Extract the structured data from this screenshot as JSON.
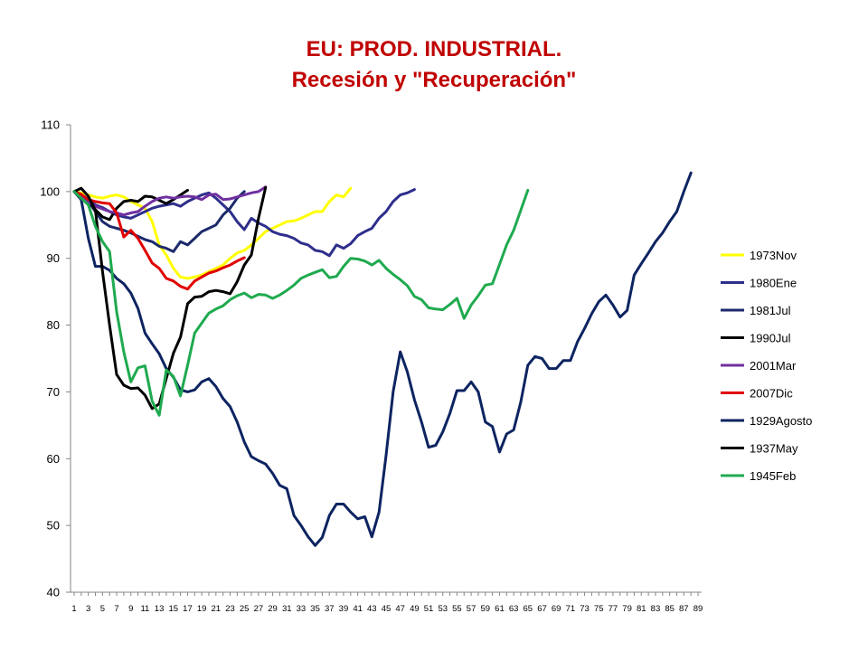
{
  "chart_data": {
    "type": "line",
    "title": "EU: PROD. INDUSTRIAL.",
    "subtitle": "Recesión y \"Recuperación\"",
    "xlabel": "",
    "ylabel": "",
    "ylim": [
      40,
      110
    ],
    "yticks": [
      40,
      50,
      60,
      70,
      80,
      90,
      100,
      110
    ],
    "xlim": [
      1,
      89
    ],
    "xticks": [
      1,
      3,
      5,
      7,
      9,
      11,
      13,
      15,
      17,
      19,
      21,
      23,
      25,
      27,
      29,
      31,
      33,
      35,
      37,
      39,
      41,
      43,
      45,
      47,
      49,
      51,
      53,
      55,
      57,
      59,
      61,
      63,
      65,
      67,
      69,
      71,
      73,
      75,
      77,
      79,
      81,
      83,
      85,
      87,
      89
    ],
    "grid": false,
    "legend_position": "right",
    "series": [
      {
        "name": "1973Nov",
        "color": "#ffff00",
        "values": [
          100,
          99.8,
          99.5,
          99.2,
          99,
          99.3,
          99.5,
          99.2,
          98.5,
          98,
          97.5,
          95.5,
          92,
          90.5,
          88.5,
          87.2,
          87,
          87.2,
          87.5,
          88,
          88.5,
          89,
          90,
          90.8,
          91.2,
          92,
          93,
          94,
          94.5,
          95,
          95.5,
          95.6,
          96,
          96.5,
          97,
          97,
          98.5,
          99.5,
          99.2,
          100.5
        ]
      },
      {
        "name": "1980Ene",
        "color": "#2e2e8c",
        "values": [
          100,
          99.5,
          98.8,
          98,
          97.6,
          97,
          96.5,
          96.2,
          96,
          96.5,
          97,
          97.5,
          97.8,
          98,
          98.2,
          97.8,
          98.5,
          99,
          99.5,
          99.8,
          99,
          98,
          97,
          95.5,
          94.3,
          96,
          95.3,
          94.8,
          94,
          93.6,
          93.4,
          93,
          92.3,
          92,
          91.2,
          91,
          90.4,
          92,
          91.5,
          92.2,
          93.4,
          94,
          94.5,
          96,
          97,
          98.5,
          99.5,
          99.8,
          100.3
        ]
      },
      {
        "name": "1981Jul",
        "color": "#1c2a6b",
        "values": [
          100,
          99.5,
          98.5,
          97,
          95.5,
          94.8,
          94.5,
          94.2,
          93.8,
          93.3,
          92.8,
          92.5,
          91.8,
          91.5,
          91,
          92.5,
          92,
          93,
          94,
          94.5,
          95,
          96.5,
          97.5,
          99,
          100
        ]
      },
      {
        "name": "1990Jul",
        "color": "#000000",
        "values": [
          100,
          99.2,
          98.7,
          97.3,
          96.2,
          95.8,
          97.5,
          98.5,
          98.7,
          98.5,
          99.3,
          99.2,
          98.7,
          98.2,
          98.8,
          99.5,
          100.2
        ]
      },
      {
        "name": "2001Mar",
        "color": "#7030a0",
        "values": [
          100,
          99.5,
          98.5,
          97.8,
          97.4,
          97,
          96.8,
          96.5,
          96.8,
          97,
          97.8,
          98.5,
          99,
          99.2,
          99,
          99.2,
          99.3,
          99.2,
          98.8,
          99.5,
          99.6,
          98.8,
          98.9,
          99.2,
          99.5,
          99.8,
          100,
          100.7
        ]
      },
      {
        "name": "2007Dic",
        "color": "#e00000",
        "values": [
          100,
          99.6,
          98.8,
          98.5,
          98.3,
          98.2,
          96.8,
          93.2,
          94.2,
          93,
          91.2,
          89.3,
          88.5,
          87,
          86.6,
          85.8,
          85.4,
          86.6,
          87.2,
          87.8,
          88.1,
          88.6,
          89,
          89.6,
          90.1
        ]
      },
      {
        "name": "1929Agosto",
        "color": "#0d2461",
        "values": [
          100,
          98.8,
          93,
          88.8,
          88.8,
          88.2,
          87,
          86.2,
          84.8,
          82.5,
          78.8,
          77.2,
          75.7,
          73.5,
          72.2,
          70.3,
          70,
          70.3,
          71.5,
          72,
          70.8,
          69,
          67.8,
          65.5,
          62.5,
          60.3,
          59.7,
          59.2,
          57.8,
          56,
          55.5,
          51.5,
          50,
          48.3,
          47,
          48.2,
          51.5,
          53.2,
          53.2,
          52,
          51,
          51.3,
          48.3,
          52,
          60.5,
          70,
          76,
          73,
          68.8,
          65.5,
          61.7,
          62,
          64,
          66.8,
          70.2,
          70.2,
          71.5,
          70,
          65.5,
          64.8,
          61,
          63.7,
          64.3,
          68.5,
          74,
          75.3,
          75,
          73.5,
          73.5,
          74.7,
          74.7,
          77.5,
          79.5,
          81.7,
          83.5,
          84.5,
          83,
          81.2,
          82.2,
          87.5,
          89.2,
          90.8,
          92.5,
          93.8,
          95.5,
          97,
          100,
          102.8
        ]
      },
      {
        "name": "1937May",
        "color": "#000000",
        "values": [
          100,
          100.5,
          99.3,
          97.2,
          88,
          80,
          72.6,
          71,
          70.5,
          70.6,
          69.5,
          67.5,
          68.2,
          72,
          75.8,
          78.2,
          83.2,
          84.2,
          84.3,
          85,
          85.2,
          85,
          84.7,
          86.5,
          89,
          90.5,
          96,
          100.6
        ]
      },
      {
        "name": "1945Feb",
        "color": "#1faa4f",
        "values": [
          100,
          99,
          98,
          94.8,
          92.5,
          91,
          82,
          76,
          71.5,
          73.6,
          73.9,
          68.6,
          66.5,
          73.3,
          72.3,
          69.4,
          74,
          78.8,
          80.3,
          81.8,
          82.4,
          82.9,
          83.8,
          84.4,
          84.8,
          84.1,
          84.6,
          84.5,
          84,
          84.5,
          85.2,
          86,
          87,
          87.5,
          87.9,
          88.3,
          87.1,
          87.3,
          88.8,
          90,
          89.9,
          89.6,
          89,
          89.7,
          88.5,
          87.6,
          86.8,
          85.9,
          84.3,
          83.8,
          82.6,
          82.4,
          82.3,
          83.1,
          84,
          81,
          83,
          84.4,
          86,
          86.2,
          89.1,
          92,
          94.2,
          97.2,
          100.2
        ]
      }
    ]
  }
}
